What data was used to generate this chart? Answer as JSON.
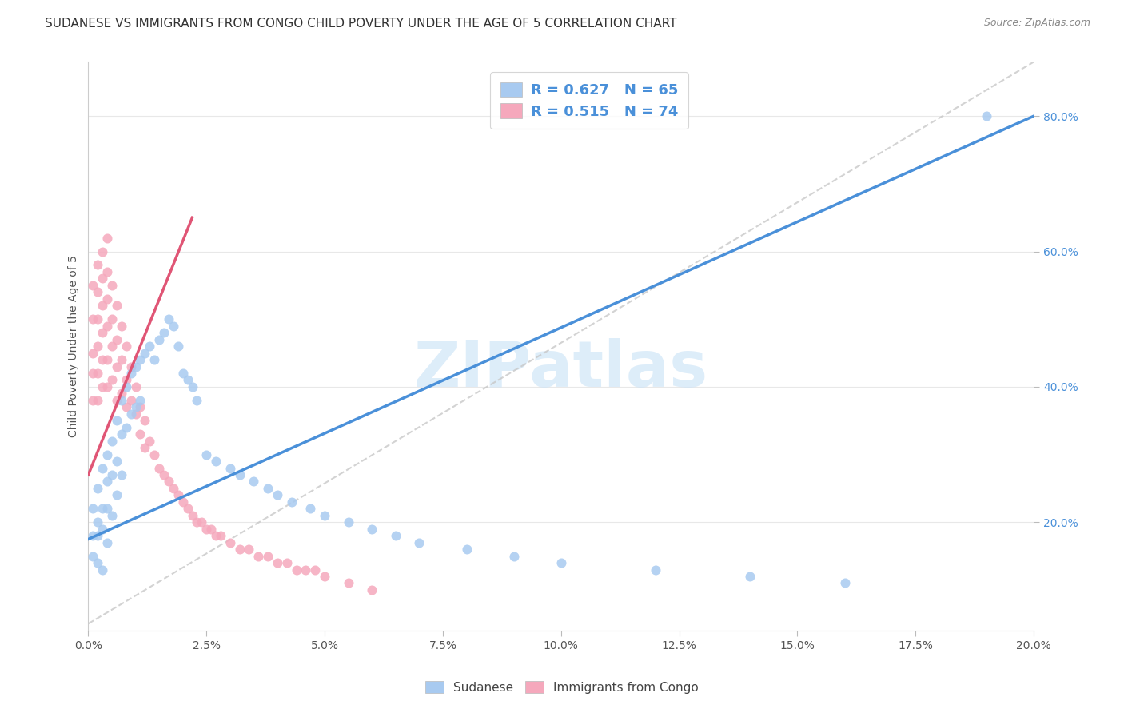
{
  "title": "SUDANESE VS IMMIGRANTS FROM CONGO CHILD POVERTY UNDER THE AGE OF 5 CORRELATION CHART",
  "source": "Source: ZipAtlas.com",
  "legend_labels": [
    "Sudanese",
    "Immigrants from Congo"
  ],
  "legend_r": [
    0.627,
    0.515
  ],
  "legend_n": [
    65,
    74
  ],
  "blue_color": "#a8caf0",
  "pink_color": "#f5a8bc",
  "blue_line_color": "#4a90d9",
  "pink_line_color": "#e05575",
  "diag_color": "#c8c8c8",
  "watermark": "ZIPatlas",
  "ylabel_label": "Child Poverty Under the Age of 5",
  "xlim": [
    0.0,
    0.2
  ],
  "ylim": [
    0.04,
    0.88
  ],
  "y_tick_vals": [
    0.2,
    0.4,
    0.6,
    0.8
  ],
  "y_tick_labels": [
    "20.0%",
    "40.0%",
    "60.0%",
    "80.0%"
  ],
  "x_tick_vals": [
    0.0,
    0.025,
    0.05,
    0.075,
    0.1,
    0.125,
    0.15,
    0.175,
    0.2
  ],
  "x_tick_labels": [
    "0.0%",
    "2.5%",
    "5.0%",
    "7.5%",
    "10.0%",
    "12.5%",
    "15.0%",
    "17.5%",
    "20.0%"
  ],
  "background_color": "#ffffff",
  "grid_color": "#e8e8e8",
  "title_fontsize": 11,
  "source_fontsize": 9,
  "tick_fontsize": 10,
  "ylabel_fontsize": 10,
  "sudanese_x": [
    0.001,
    0.001,
    0.001,
    0.002,
    0.002,
    0.002,
    0.002,
    0.003,
    0.003,
    0.003,
    0.003,
    0.004,
    0.004,
    0.004,
    0.004,
    0.005,
    0.005,
    0.005,
    0.006,
    0.006,
    0.006,
    0.007,
    0.007,
    0.007,
    0.008,
    0.008,
    0.009,
    0.009,
    0.01,
    0.01,
    0.011,
    0.011,
    0.012,
    0.013,
    0.014,
    0.015,
    0.016,
    0.017,
    0.018,
    0.019,
    0.02,
    0.021,
    0.022,
    0.023,
    0.025,
    0.027,
    0.03,
    0.032,
    0.035,
    0.038,
    0.04,
    0.043,
    0.047,
    0.05,
    0.055,
    0.06,
    0.065,
    0.07,
    0.08,
    0.09,
    0.1,
    0.12,
    0.14,
    0.16,
    0.19
  ],
  "sudanese_y": [
    0.22,
    0.18,
    0.15,
    0.25,
    0.2,
    0.18,
    0.14,
    0.28,
    0.22,
    0.19,
    0.13,
    0.3,
    0.26,
    0.22,
    0.17,
    0.32,
    0.27,
    0.21,
    0.35,
    0.29,
    0.24,
    0.38,
    0.33,
    0.27,
    0.4,
    0.34,
    0.42,
    0.36,
    0.43,
    0.37,
    0.44,
    0.38,
    0.45,
    0.46,
    0.44,
    0.47,
    0.48,
    0.5,
    0.49,
    0.46,
    0.42,
    0.41,
    0.4,
    0.38,
    0.3,
    0.29,
    0.28,
    0.27,
    0.26,
    0.25,
    0.24,
    0.23,
    0.22,
    0.21,
    0.2,
    0.19,
    0.18,
    0.17,
    0.16,
    0.15,
    0.14,
    0.13,
    0.12,
    0.11,
    0.8
  ],
  "congo_x": [
    0.001,
    0.001,
    0.001,
    0.001,
    0.001,
    0.002,
    0.002,
    0.002,
    0.002,
    0.002,
    0.002,
    0.003,
    0.003,
    0.003,
    0.003,
    0.003,
    0.003,
    0.004,
    0.004,
    0.004,
    0.004,
    0.004,
    0.004,
    0.005,
    0.005,
    0.005,
    0.005,
    0.006,
    0.006,
    0.006,
    0.006,
    0.007,
    0.007,
    0.007,
    0.008,
    0.008,
    0.008,
    0.009,
    0.009,
    0.01,
    0.01,
    0.011,
    0.011,
    0.012,
    0.012,
    0.013,
    0.014,
    0.015,
    0.016,
    0.017,
    0.018,
    0.019,
    0.02,
    0.021,
    0.022,
    0.023,
    0.024,
    0.025,
    0.026,
    0.027,
    0.028,
    0.03,
    0.032,
    0.034,
    0.036,
    0.038,
    0.04,
    0.042,
    0.044,
    0.046,
    0.048,
    0.05,
    0.055,
    0.06
  ],
  "congo_y": [
    0.55,
    0.5,
    0.45,
    0.42,
    0.38,
    0.58,
    0.54,
    0.5,
    0.46,
    0.42,
    0.38,
    0.6,
    0.56,
    0.52,
    0.48,
    0.44,
    0.4,
    0.62,
    0.57,
    0.53,
    0.49,
    0.44,
    0.4,
    0.55,
    0.5,
    0.46,
    0.41,
    0.52,
    0.47,
    0.43,
    0.38,
    0.49,
    0.44,
    0.39,
    0.46,
    0.41,
    0.37,
    0.43,
    0.38,
    0.4,
    0.36,
    0.37,
    0.33,
    0.35,
    0.31,
    0.32,
    0.3,
    0.28,
    0.27,
    0.26,
    0.25,
    0.24,
    0.23,
    0.22,
    0.21,
    0.2,
    0.2,
    0.19,
    0.19,
    0.18,
    0.18,
    0.17,
    0.16,
    0.16,
    0.15,
    0.15,
    0.14,
    0.14,
    0.13,
    0.13,
    0.13,
    0.12,
    0.11,
    0.1
  ],
  "blue_line_x": [
    0.0,
    0.2
  ],
  "blue_line_y": [
    0.175,
    0.8
  ],
  "pink_line_x": [
    0.0,
    0.022
  ],
  "pink_line_y": [
    0.27,
    0.65
  ],
  "diag_line_x": [
    0.0,
    0.2
  ],
  "diag_line_y": [
    0.05,
    0.88
  ]
}
